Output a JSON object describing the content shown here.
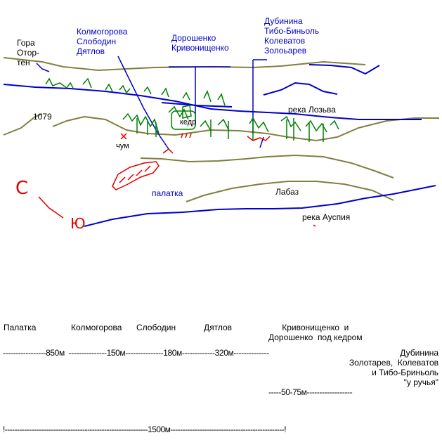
{
  "map": {
    "labels": {
      "mountain": "Гора\nОтор-\nтен",
      "height": "1079",
      "group1": "Колмогорова\nСлободин\nДятлов",
      "group2": "Дорошенко\nКривонищенко",
      "group3": "Дубинина\nТибо-Биньоль\nКолеватов\nЗолоьарев",
      "river_lozva": "река Лозьва",
      "cedar": "кедр",
      "chum": "чум",
      "tent": "палатка",
      "labaz": "Лабаз",
      "river_auspiya": "река Ауспия",
      "north": "С",
      "south": "Ю"
    },
    "colors": {
      "river": "#0000cc",
      "contour": "#808040",
      "forest": "#008000",
      "marks": "#dd0000",
      "pointer": "#0000cc"
    }
  },
  "distances": {
    "names_row": {
      "palatka": "Палатка",
      "kolmogorova": "Колмогорова",
      "slobodin": "Слободин",
      "dyatlov": "Дятлов",
      "krivonischenko": "Кривонищенко  и\nДорошенко  под кедром"
    },
    "line1": "-----------------850м  ---------------150м---------------180м-------------320м--------------",
    "group_text": "Дубинина\nЗолотарев,  Колеватов\nи Тибо-Бриньоль\n\"у ручья\"",
    "line2": "-----50-75м------------------",
    "line3": "!-----------------------------------------------------------1500м-----------------------------------------------!"
  }
}
